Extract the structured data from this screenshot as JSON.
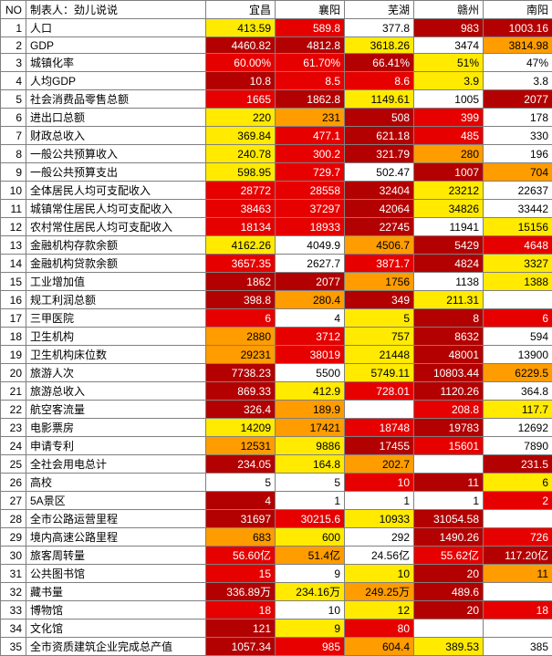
{
  "header": {
    "no": "NO",
    "maker": "制表人：劲儿说说",
    "cols": [
      "宜昌",
      "襄阳",
      "芜湖",
      "赣州",
      "南阳"
    ]
  },
  "palette": {
    "yellow": "#ffea00",
    "orange": "#ff9c00",
    "red": "#e60000",
    "darkred": "#b30000",
    "white": "#ffffff",
    "text_light": "#ffffff",
    "text_dark": "#000000"
  },
  "rows": [
    {
      "no": 1,
      "name": "人口",
      "v": [
        "413.59",
        "589.8",
        "377.8",
        "983",
        "1003.16"
      ],
      "c": [
        "yellow",
        "red",
        "white",
        "darkred",
        "darkred"
      ]
    },
    {
      "no": 2,
      "name": "GDP",
      "v": [
        "4460.82",
        "4812.8",
        "3618.26",
        "3474",
        "3814.98"
      ],
      "c": [
        "darkred",
        "darkred",
        "yellow",
        "white",
        "orange"
      ]
    },
    {
      "no": 3,
      "name": "城镇化率",
      "v": [
        "60.00%",
        "61.70%",
        "66.41%",
        "51%",
        "47%"
      ],
      "c": [
        "red",
        "red",
        "darkred",
        "yellow",
        "white"
      ]
    },
    {
      "no": 4,
      "name": "人均GDP",
      "v": [
        "10.8",
        "8.5",
        "8.6",
        "3.9",
        "3.8"
      ],
      "c": [
        "darkred",
        "red",
        "red",
        "yellow",
        "white"
      ]
    },
    {
      "no": 5,
      "name": "社会消费品零售总额",
      "v": [
        "1665",
        "1862.8",
        "1149.61",
        "1005",
        "2077"
      ],
      "c": [
        "red",
        "darkred",
        "yellow",
        "white",
        "darkred"
      ]
    },
    {
      "no": 6,
      "name": "进出口总额",
      "v": [
        "220",
        "231",
        "508",
        "399",
        "178"
      ],
      "c": [
        "yellow",
        "orange",
        "darkred",
        "red",
        "white"
      ]
    },
    {
      "no": 7,
      "name": "财政总收入",
      "v": [
        "369.84",
        "477.1",
        "621.18",
        "485",
        "330"
      ],
      "c": [
        "yellow",
        "red",
        "darkred",
        "red",
        "white"
      ]
    },
    {
      "no": 8,
      "name": "一般公共预算收入",
      "v": [
        "240.78",
        "300.2",
        "321.79",
        "280",
        "196"
      ],
      "c": [
        "yellow",
        "red",
        "darkred",
        "orange",
        "white"
      ]
    },
    {
      "no": 9,
      "name": "一般公共预算支出",
      "v": [
        "598.95",
        "729.7",
        "502.47",
        "1007",
        "704"
      ],
      "c": [
        "yellow",
        "red",
        "white",
        "darkred",
        "orange"
      ]
    },
    {
      "no": 10,
      "name": "全体居民人均可支配收入",
      "v": [
        "28772",
        "28558",
        "32404",
        "23212",
        "22637"
      ],
      "c": [
        "red",
        "red",
        "darkred",
        "yellow",
        "white"
      ]
    },
    {
      "no": 11,
      "name": "城镇常住居民人均可支配收入",
      "v": [
        "38463",
        "37297",
        "42064",
        "34826",
        "33442"
      ],
      "c": [
        "red",
        "red",
        "darkred",
        "yellow",
        "white"
      ]
    },
    {
      "no": 12,
      "name": "农村常住居民人均可支配收入",
      "v": [
        "18134",
        "18933",
        "22745",
        "11941",
        "15156"
      ],
      "c": [
        "red",
        "red",
        "darkred",
        "white",
        "yellow"
      ]
    },
    {
      "no": 13,
      "name": "金融机构存款余额",
      "v": [
        "4162.26",
        "4049.9",
        "4506.7",
        "5429",
        "4648"
      ],
      "c": [
        "yellow",
        "white",
        "orange",
        "darkred",
        "red"
      ]
    },
    {
      "no": 14,
      "name": "金融机构贷款余额",
      "v": [
        "3657.35",
        "2627.7",
        "3871.7",
        "4824",
        "3327"
      ],
      "c": [
        "red",
        "white",
        "red",
        "darkred",
        "yellow"
      ]
    },
    {
      "no": 15,
      "name": "工业增加值",
      "v": [
        "1862",
        "2077",
        "1756",
        "1138",
        "1388"
      ],
      "c": [
        "darkred",
        "darkred",
        "orange",
        "white",
        "yellow"
      ]
    },
    {
      "no": 16,
      "name": "规工利润总额",
      "v": [
        "398.8",
        "280.4",
        "349",
        "211.31",
        ""
      ],
      "c": [
        "darkred",
        "orange",
        "darkred",
        "yellow",
        "white"
      ]
    },
    {
      "no": 17,
      "name": "三甲医院",
      "v": [
        "6",
        "4",
        "5",
        "8",
        "6"
      ],
      "c": [
        "red",
        "white",
        "yellow",
        "darkred",
        "red"
      ]
    },
    {
      "no": 18,
      "name": "卫生机构",
      "v": [
        "2880",
        "3712",
        "757",
        "8632",
        "594"
      ],
      "c": [
        "orange",
        "red",
        "yellow",
        "darkred",
        "white"
      ]
    },
    {
      "no": 19,
      "name": "卫生机构床位数",
      "v": [
        "29231",
        "38019",
        "21448",
        "48001",
        "13900"
      ],
      "c": [
        "orange",
        "red",
        "yellow",
        "darkred",
        "white"
      ]
    },
    {
      "no": 20,
      "name": "旅游人次",
      "v": [
        "7738.23",
        "5500",
        "5749.11",
        "10803.44",
        "6229.5"
      ],
      "c": [
        "darkred",
        "white",
        "yellow",
        "darkred",
        "orange"
      ]
    },
    {
      "no": 21,
      "name": "旅游总收入",
      "v": [
        "869.33",
        "412.9",
        "728.01",
        "1120.26",
        "364.8"
      ],
      "c": [
        "darkred",
        "yellow",
        "red",
        "darkred",
        "white"
      ]
    },
    {
      "no": 22,
      "name": "航空客流量",
      "v": [
        "326.4",
        "189.9",
        "",
        "208.8",
        "117.7"
      ],
      "c": [
        "darkred",
        "orange",
        "white",
        "red",
        "yellow"
      ]
    },
    {
      "no": 23,
      "name": "电影票房",
      "v": [
        "14209",
        "17421",
        "18748",
        "19783",
        "12692"
      ],
      "c": [
        "yellow",
        "orange",
        "red",
        "darkred",
        "white"
      ]
    },
    {
      "no": 24,
      "name": "申请专利",
      "v": [
        "12531",
        "9886",
        "17455",
        "15601",
        "7890"
      ],
      "c": [
        "orange",
        "yellow",
        "darkred",
        "red",
        "white"
      ]
    },
    {
      "no": 25,
      "name": "全社会用电总计",
      "v": [
        "234.05",
        "164.8",
        "202.7",
        "",
        "231.5"
      ],
      "c": [
        "darkred",
        "yellow",
        "orange",
        "white",
        "darkred"
      ]
    },
    {
      "no": 26,
      "name": "高校",
      "v": [
        "5",
        "5",
        "10",
        "11",
        "6"
      ],
      "c": [
        "white",
        "white",
        "red",
        "darkred",
        "yellow"
      ]
    },
    {
      "no": 27,
      "name": "5A景区",
      "v": [
        "4",
        "1",
        "1",
        "1",
        "2"
      ],
      "c": [
        "darkred",
        "white",
        "white",
        "white",
        "red"
      ]
    },
    {
      "no": 28,
      "name": "全市公路运营里程",
      "v": [
        "31697",
        "30215.6",
        "10933",
        "31054.58",
        ""
      ],
      "c": [
        "darkred",
        "red",
        "yellow",
        "darkred",
        "white"
      ]
    },
    {
      "no": 29,
      "name": "境内高速公路里程",
      "v": [
        "683",
        "600",
        "292",
        "1490.26",
        "726"
      ],
      "c": [
        "orange",
        "yellow",
        "white",
        "darkred",
        "red"
      ]
    },
    {
      "no": 30,
      "name": "旅客周转量",
      "v": [
        "56.60亿",
        "51.4亿",
        "24.56亿",
        "55.62亿",
        "117.20亿"
      ],
      "c": [
        "red",
        "orange",
        "white",
        "red",
        "darkred"
      ]
    },
    {
      "no": 31,
      "name": "公共图书馆",
      "v": [
        "15",
        "9",
        "10",
        "20",
        "11"
      ],
      "c": [
        "red",
        "white",
        "yellow",
        "darkred",
        "orange"
      ]
    },
    {
      "no": 32,
      "name": "藏书量",
      "v": [
        "336.89万",
        "234.16万",
        "249.25万",
        "489.6",
        ""
      ],
      "c": [
        "darkred",
        "yellow",
        "orange",
        "darkred",
        "white"
      ]
    },
    {
      "no": 33,
      "name": "博物馆",
      "v": [
        "18",
        "10",
        "12",
        "20",
        "18"
      ],
      "c": [
        "red",
        "white",
        "yellow",
        "darkred",
        "red"
      ]
    },
    {
      "no": 34,
      "name": "文化馆",
      "v": [
        "121",
        "9",
        "80",
        "",
        " "
      ],
      "c": [
        "darkred",
        "yellow",
        "red",
        "white",
        "white"
      ]
    },
    {
      "no": 35,
      "name": "全市资质建筑企业完成总产值",
      "v": [
        "1057.34",
        "985",
        "604.4",
        "389.53",
        "385"
      ],
      "c": [
        "darkred",
        "red",
        "orange",
        "yellow",
        "white"
      ]
    }
  ]
}
